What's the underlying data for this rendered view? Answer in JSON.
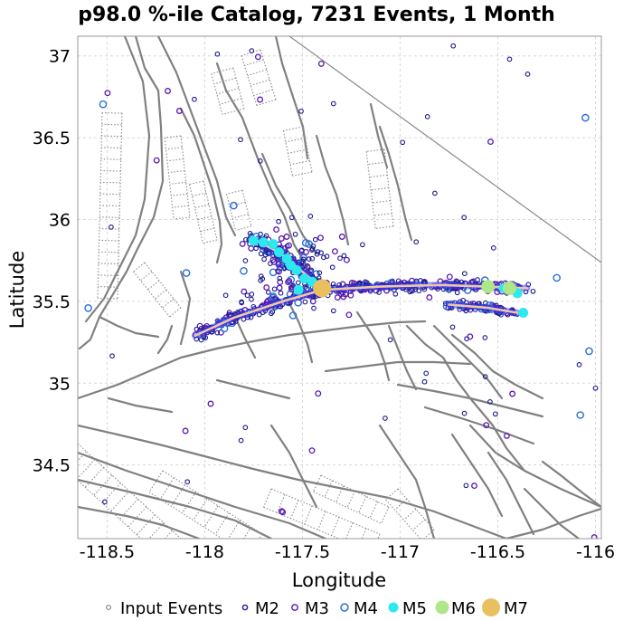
{
  "chart_data": {
    "type": "scatter",
    "title": "p98.0 %-ile Catalog, 7231 Events, 1 Month",
    "xlabel": "Longitude",
    "ylabel": "Latitude",
    "xlim": [
      -118.65,
      -115.97
    ],
    "ylim": [
      34.05,
      37.12
    ],
    "xticks": [
      -118.5,
      -118,
      -117.5,
      -117,
      -116.5,
      -116
    ],
    "xtick_labels": [
      "-118.5",
      "-118",
      "-117.5",
      "-117",
      "-116.5",
      "-116"
    ],
    "yticks": [
      34.5,
      35,
      35.5,
      36,
      36.5,
      37
    ],
    "ytick_labels": [
      "34.5",
      "35",
      "35.5",
      "36",
      "36.5",
      "37"
    ],
    "grid": true,
    "legend_position": "bottom",
    "legend": [
      {
        "label": "Input Events",
        "style": "small-gray-ring"
      },
      {
        "label": "M2",
        "style": "dark-blue-ring"
      },
      {
        "label": "M3",
        "style": "purple-ring"
      },
      {
        "label": "M4",
        "style": "blue-ring"
      },
      {
        "label": "M5",
        "style": "cyan-dot"
      },
      {
        "label": "M6",
        "style": "lime-dot"
      },
      {
        "label": "M7",
        "style": "gold-dot"
      }
    ],
    "colors": {
      "fault": "#808080",
      "grid": "#d8d8d8",
      "m2": "#1a1a8c",
      "m3": "#5a1ab0",
      "m4": "#2a6fd8",
      "m5": "#2ee8f0",
      "m6": "#b0e68a",
      "m7": "#e8c060",
      "rupture": "#f0c8a0"
    },
    "mainshock": {
      "lon": -117.4,
      "lat": 35.58,
      "mag_class": "M7"
    },
    "m6_events": [
      {
        "lon": -116.55,
        "lat": 35.59
      },
      {
        "lon": -116.44,
        "lat": 35.58
      }
    ],
    "m5_events": [
      {
        "lon": -117.65,
        "lat": 35.85
      },
      {
        "lon": -117.62,
        "lat": 35.8
      },
      {
        "lon": -117.58,
        "lat": 35.76
      },
      {
        "lon": -117.56,
        "lat": 35.72
      },
      {
        "lon": -117.53,
        "lat": 35.69
      },
      {
        "lon": -117.49,
        "lat": 35.64
      },
      {
        "lon": -117.45,
        "lat": 35.62
      },
      {
        "lon": -117.52,
        "lat": 35.57
      },
      {
        "lon": -116.47,
        "lat": 35.58
      },
      {
        "lon": -116.4,
        "lat": 35.55
      },
      {
        "lon": -116.37,
        "lat": 35.43
      },
      {
        "lon": -117.75,
        "lat": 35.87
      },
      {
        "lon": -117.7,
        "lat": 35.86
      }
    ],
    "sequence_trends": [
      {
        "name": "main-rupture",
        "points": [
          [
            -118.05,
            35.29
          ],
          [
            -117.85,
            35.4
          ],
          [
            -117.6,
            35.5
          ],
          [
            -117.4,
            35.57
          ],
          [
            -117.1,
            35.59
          ],
          [
            -116.8,
            35.6
          ],
          [
            -116.55,
            35.59
          ],
          [
            -116.35,
            35.58
          ]
        ]
      },
      {
        "name": "nw-branch",
        "points": [
          [
            -117.75,
            35.88
          ],
          [
            -117.62,
            35.8
          ],
          [
            -117.5,
            35.68
          ],
          [
            -117.4,
            35.58
          ]
        ]
      },
      {
        "name": "se-branch",
        "points": [
          [
            -116.75,
            35.48
          ],
          [
            -116.55,
            35.46
          ],
          [
            -116.4,
            35.43
          ]
        ]
      }
    ]
  }
}
